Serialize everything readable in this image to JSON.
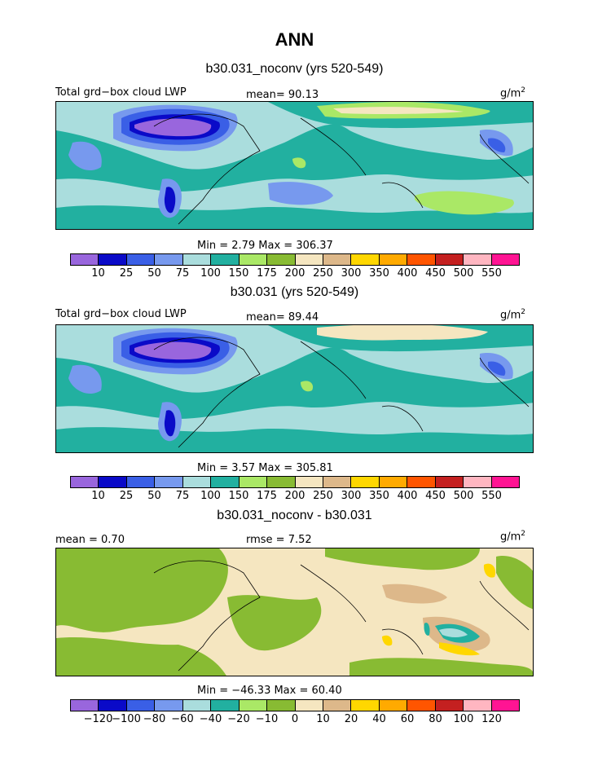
{
  "title": "ANN",
  "palette_abs": [
    "#9966dd",
    "#0a0ac8",
    "#3a5fe6",
    "#7799ee",
    "#aadddd",
    "#22b0a0",
    "#aae866",
    "#88bb33",
    "#f5e6c0",
    "#ddb88a",
    "#ffd700",
    "#ffaa00",
    "#ff5500",
    "#c42020",
    "#ffb6c1",
    "#ff1493"
  ],
  "palette_diff": [
    "#9966dd",
    "#0a0ac8",
    "#3a5fe6",
    "#7799ee",
    "#aadddd",
    "#22b0a0",
    "#aae866",
    "#88bb33",
    "#f5e6c0",
    "#ddb88a",
    "#ffd700",
    "#ffaa00",
    "#ff5500",
    "#c42020",
    "#ffb6c1",
    "#ff1493"
  ],
  "map_colors": {
    "low": "#9966dd",
    "mid": "#7799ee",
    "base": "#aadddd",
    "teal": "#22b0a0",
    "green": "#88bb33",
    "beige": "#f5e6c0",
    "tan": "#ddb88a",
    "yellow": "#ffd700",
    "lime": "#aae866"
  },
  "panels": [
    {
      "title": "b30.031_noconv (yrs 520-549)",
      "variable": "Total grd−box cloud LWP",
      "mean": "mean=  90.13",
      "units": "g/m",
      "units_sup": "2",
      "minmax": "Min =    2.79  Max = 306.37",
      "levels": [
        "10",
        "25",
        "50",
        "75",
        "100",
        "150",
        "175",
        "200",
        "250",
        "300",
        "350",
        "400",
        "450",
        "500",
        "550"
      ]
    },
    {
      "title": "b30.031 (yrs 520-549)",
      "variable": "Total grd−box cloud LWP",
      "mean": "mean=  89.44",
      "units": "g/m",
      "units_sup": "2",
      "minmax": "Min =    3.57  Max = 305.81",
      "levels": [
        "10",
        "25",
        "50",
        "75",
        "100",
        "150",
        "175",
        "200",
        "250",
        "300",
        "350",
        "400",
        "450",
        "500",
        "550"
      ]
    },
    {
      "title": "b30.031_noconv - b30.031",
      "mean": "mean =   0.70",
      "rmse": "rmse =   7.52",
      "units": "g/m",
      "units_sup": "2",
      "minmax": "Min = −46.33  Max =  60.40",
      "levels": [
        "−120",
        "−100",
        "−80",
        "−60",
        "−40",
        "−20",
        "−10",
        "0",
        "10",
        "20",
        "40",
        "60",
        "80",
        "100",
        "120"
      ]
    }
  ],
  "chart_data": [
    {
      "type": "heatmap",
      "title": "b30.031_noconv (yrs 520-549)",
      "variable": "Total grd−box cloud LWP",
      "units": "g/m2",
      "mean": 90.13,
      "min": 2.79,
      "max": 306.37,
      "contour_levels": [
        10,
        25,
        50,
        75,
        100,
        150,
        175,
        200,
        250,
        300,
        350,
        400,
        450,
        500,
        550
      ]
    },
    {
      "type": "heatmap",
      "title": "b30.031 (yrs 520-549)",
      "variable": "Total grd−box cloud LWP",
      "units": "g/m2",
      "mean": 89.44,
      "min": 3.57,
      "max": 305.81,
      "contour_levels": [
        10,
        25,
        50,
        75,
        100,
        150,
        175,
        200,
        250,
        300,
        350,
        400,
        450,
        500,
        550
      ]
    },
    {
      "type": "heatmap",
      "title": "b30.031_noconv - b30.031",
      "units": "g/m2",
      "mean": 0.7,
      "rmse": 7.52,
      "min": -46.33,
      "max": 60.4,
      "contour_levels": [
        -120,
        -100,
        -80,
        -60,
        -40,
        -20,
        -10,
        0,
        10,
        20,
        40,
        60,
        80,
        100,
        120
      ]
    }
  ]
}
